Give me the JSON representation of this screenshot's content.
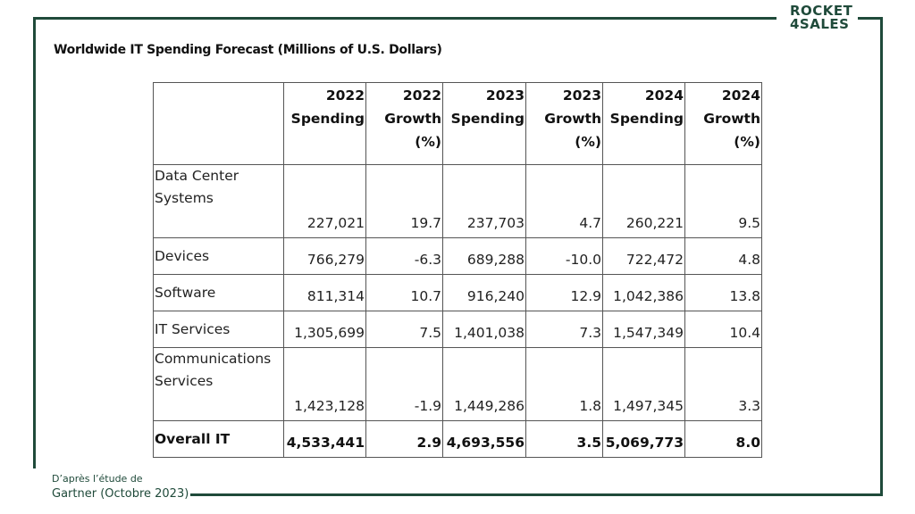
{
  "brand": {
    "line1": "ROCKET",
    "line2": "4SALES"
  },
  "title": "Worldwide IT Spending Forecast (Millions of U.S. Dollars)",
  "table": {
    "headers": [
      "",
      "2022 Spending",
      "2022 Growth (%)",
      "2023 Spending",
      "2023 Growth (%)",
      "2024 Spending",
      "2024 Growth (%)"
    ],
    "rows": [
      {
        "label": [
          "Data Center",
          "Systems"
        ],
        "values": [
          "227,021",
          "19.7",
          "237,703",
          "4.7",
          "260,221",
          "9.5"
        ]
      },
      {
        "label": [
          "Devices"
        ],
        "values": [
          "766,279",
          "-6.3",
          "689,288",
          "-10.0",
          "722,472",
          "4.8"
        ]
      },
      {
        "label": [
          "Software"
        ],
        "values": [
          "811,314",
          "10.7",
          "916,240",
          "12.9",
          "1,042,386",
          "13.8"
        ]
      },
      {
        "label": [
          "IT Services"
        ],
        "values": [
          "1,305,699",
          "7.5",
          "1,401,038",
          "7.3",
          "1,547,349",
          "10.4"
        ]
      },
      {
        "label": [
          "Communications",
          "Services"
        ],
        "values": [
          "1,423,128",
          "-1.9",
          "1,449,286",
          "1.8",
          "1,497,345",
          "3.3"
        ]
      },
      {
        "label": [
          "Overall IT"
        ],
        "values": [
          "4,533,441",
          "2.9",
          "4,693,556",
          "3.5",
          "5,069,773",
          "8.0"
        ]
      }
    ]
  },
  "source": {
    "line1": "D’après l’étude de",
    "line2": "Gartner (Octobre 2023)"
  },
  "colors": {
    "frame": "#1f4a3a",
    "text": "#111111",
    "border": "#555555"
  }
}
